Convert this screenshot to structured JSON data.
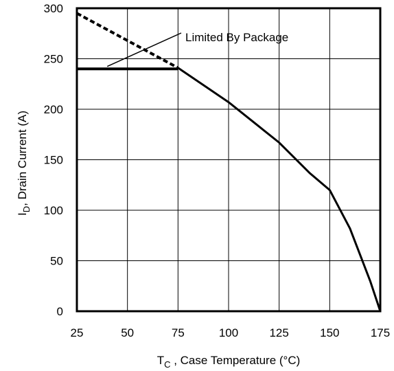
{
  "chart_data": {
    "type": "line",
    "title": "",
    "xlabel": {
      "main": "T",
      "sub": "C",
      "rest": " , Case Temperature (°C)"
    },
    "ylabel": {
      "main": "I",
      "sub": "D",
      "rest": ",  Drain Current (A)"
    },
    "xlim": [
      25,
      175
    ],
    "ylim": [
      0,
      300
    ],
    "xticks": [
      25,
      50,
      75,
      100,
      125,
      150,
      175
    ],
    "yticks": [
      0,
      50,
      100,
      150,
      200,
      250,
      300
    ],
    "grid": true,
    "series": [
      {
        "style": "dashed",
        "x": [
          25,
          50,
          75
        ],
        "y": [
          295,
          268,
          241
        ]
      },
      {
        "style": "solid",
        "x": [
          75,
          100,
          125,
          140,
          150,
          160,
          170,
          175
        ],
        "y": [
          241,
          207,
          167,
          137,
          120,
          82,
          30,
          0
        ]
      },
      {
        "style": "solid-bold",
        "x": [
          25,
          75
        ],
        "y": [
          240,
          240
        ]
      }
    ],
    "annotations": [
      {
        "text": "Limited By Package",
        "points_to": {
          "x": 40,
          "y": 241
        }
      }
    ]
  },
  "colors": {
    "line": "#000000",
    "grid": "#000000",
    "background": "#ffffff"
  }
}
